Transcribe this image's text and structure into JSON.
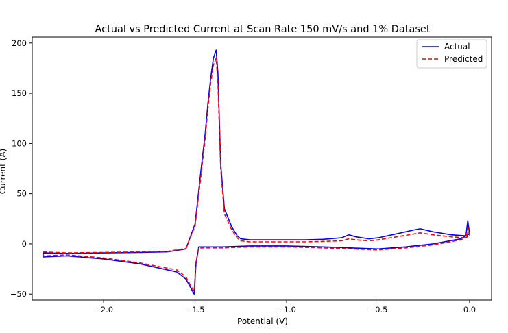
{
  "chart_data": {
    "type": "line",
    "title": "Actual vs Predicted Current at Scan Rate 150 mV/s and 1% Dataset",
    "xlabel": "Potential (V)",
    "ylabel": "Current (A)",
    "xlim": [
      -2.39,
      0.12
    ],
    "ylim": [
      -56,
      206
    ],
    "xticks": [
      -2.0,
      -1.5,
      -1.0,
      -0.5,
      0.0
    ],
    "xtick_labels": [
      "−2.0",
      "−1.5",
      "−1.0",
      "−0.5",
      "0.0"
    ],
    "yticks": [
      -50,
      0,
      50,
      100,
      150,
      200
    ],
    "ytick_labels": [
      "−50",
      "0",
      "50",
      "100",
      "150",
      "200"
    ],
    "grid": false,
    "legend_position": "top-right",
    "series": [
      {
        "name": "Actual",
        "color": "#0000ff",
        "dash": "solid",
        "x": [
          -2.33,
          -2.2,
          -2.0,
          -1.8,
          -1.65,
          -1.55,
          -1.5,
          -1.47,
          -1.445,
          -1.43,
          -1.415,
          -1.4,
          -1.385,
          -1.375,
          -1.36,
          -1.34,
          -1.3,
          -1.27,
          -1.25,
          -1.2,
          -1.0,
          -0.9,
          -0.8,
          -0.7,
          -0.66,
          -0.62,
          -0.55,
          -0.5,
          -0.4,
          -0.3,
          -0.27,
          -0.2,
          -0.1,
          -0.02,
          -0.01,
          0.0,
          -0.05,
          -0.2,
          -0.35,
          -0.5,
          -0.8,
          -1.0,
          -1.2,
          -1.35,
          -1.4,
          -1.45,
          -1.48,
          -1.495,
          -1.505,
          -1.52,
          -1.55,
          -1.6,
          -1.8,
          -2.0,
          -2.2,
          -2.33,
          -2.33
        ],
        "y": [
          -9,
          -9.5,
          -9,
          -8.5,
          -8,
          -5,
          20,
          70,
          110,
          140,
          165,
          185,
          193,
          170,
          80,
          35,
          17,
          8,
          5,
          4,
          4,
          4,
          4.5,
          6,
          9,
          7,
          5,
          6,
          10,
          14,
          15,
          12,
          9,
          8,
          23,
          10,
          5,
          0,
          -3,
          -5,
          -3,
          -2,
          -2,
          -3,
          -3,
          -3,
          -3,
          -20,
          -50,
          -45,
          -35,
          -28,
          -20,
          -15,
          -12,
          -13,
          -9
        ]
      },
      {
        "name": "Predicted",
        "color": "#ff0000",
        "dash": "dashed",
        "x": [
          -2.33,
          -2.2,
          -2.0,
          -1.8,
          -1.65,
          -1.55,
          -1.5,
          -1.47,
          -1.445,
          -1.43,
          -1.415,
          -1.4,
          -1.385,
          -1.375,
          -1.36,
          -1.34,
          -1.3,
          -1.27,
          -1.25,
          -1.2,
          -1.0,
          -0.9,
          -0.8,
          -0.7,
          -0.66,
          -0.62,
          -0.55,
          -0.5,
          -0.4,
          -0.3,
          -0.27,
          -0.2,
          -0.1,
          -0.02,
          -0.01,
          0.0,
          -0.05,
          -0.2,
          -0.35,
          -0.5,
          -0.8,
          -1.0,
          -1.2,
          -1.35,
          -1.4,
          -1.45,
          -1.48,
          -1.495,
          -1.505,
          -1.52,
          -1.55,
          -1.6,
          -1.8,
          -2.0,
          -2.2,
          -2.33,
          -2.33
        ],
        "y": [
          -8,
          -9,
          -8.5,
          -8,
          -7.5,
          -4.5,
          18,
          65,
          105,
          135,
          160,
          178,
          185,
          160,
          75,
          30,
          14,
          6,
          3,
          2,
          2,
          2,
          2.5,
          3,
          5,
          4,
          3,
          4,
          7,
          10,
          11,
          9,
          7,
          6,
          16,
          8,
          4,
          -1,
          -4,
          -6,
          -4,
          -3,
          -3,
          -4,
          -4,
          -4,
          -4,
          -18,
          -47,
          -43,
          -33,
          -26,
          -19,
          -14,
          -11,
          -12,
          -8
        ]
      }
    ]
  }
}
